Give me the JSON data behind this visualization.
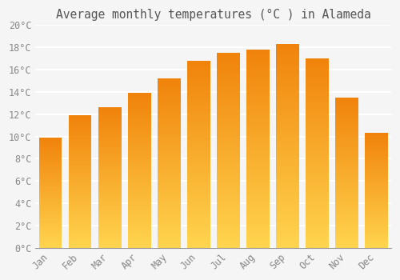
{
  "title": "Average monthly temperatures (°C ) in Alameda",
  "months": [
    "Jan",
    "Feb",
    "Mar",
    "Apr",
    "May",
    "Jun",
    "Jul",
    "Aug",
    "Sep",
    "Oct",
    "Nov",
    "Dec"
  ],
  "values": [
    9.9,
    11.9,
    12.6,
    13.9,
    15.2,
    16.8,
    17.5,
    17.8,
    18.3,
    17.0,
    13.5,
    10.3
  ],
  "bar_color_bottom": "#FFD44E",
  "bar_color_top": "#F0820A",
  "ylim": [
    0,
    20
  ],
  "ytick_step": 2,
  "background_color": "#F5F5F5",
  "plot_bg_color": "#F5F5F5",
  "grid_color": "#FFFFFF",
  "title_fontsize": 10.5,
  "tick_fontsize": 8.5,
  "font_family": "monospace",
  "title_color": "#555555",
  "tick_color": "#888888"
}
